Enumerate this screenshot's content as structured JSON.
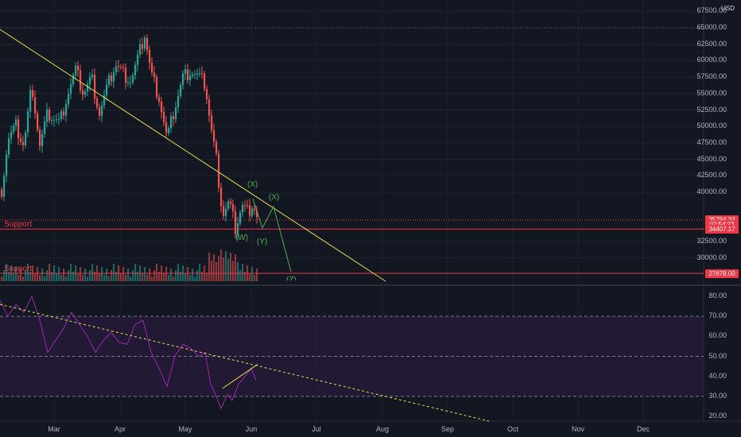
{
  "price_pane": {
    "currency": "USD",
    "axis_ticks": [
      {
        "label": "67500.00",
        "value": 67500
      },
      {
        "label": "65000.00",
        "value": 65000
      },
      {
        "label": "62500.00",
        "value": 62500
      },
      {
        "label": "60000.00",
        "value": 60000
      },
      {
        "label": "57500.00",
        "value": 57500
      },
      {
        "label": "55000.00",
        "value": 55000
      },
      {
        "label": "52500.00",
        "value": 52500
      },
      {
        "label": "50000.00",
        "value": 50000
      },
      {
        "label": "47500.00",
        "value": 47500
      },
      {
        "label": "45000.00",
        "value": 45000
      },
      {
        "label": "42500.00",
        "value": 42500
      },
      {
        "label": "40000.00",
        "value": 40000
      },
      {
        "label": "32500.00",
        "value": 32500
      },
      {
        "label": "30000.00",
        "value": 30000
      }
    ],
    "badges": [
      {
        "name": "last-price-badge",
        "label": "35794.34",
        "value": 35794.34,
        "color": "#f23645"
      },
      {
        "name": "countdown-badge",
        "label": "02:54:23",
        "value": 35150,
        "color": "#f23645"
      },
      {
        "name": "support-upper-badge",
        "label": "34407.17",
        "value": 34407.17,
        "color": "#f23645"
      },
      {
        "name": "support-lower-badge",
        "label": "27678.00",
        "value": 27678,
        "color": "#f23645"
      }
    ],
    "support_label_upper": "Support",
    "support_label_lower": "Support",
    "wave_labels": {
      "w": "(W)",
      "x1": "(X)",
      "y": "(Y)",
      "x2": "(X)",
      "z": "(Z)"
    }
  },
  "rsi_pane": {
    "axis_ticks": [
      {
        "label": "80.00",
        "value": 80
      },
      {
        "label": "70.00",
        "value": 70
      },
      {
        "label": "60.00",
        "value": 60
      },
      {
        "label": "50.00",
        "value": 50
      },
      {
        "label": "40.00",
        "value": 40
      },
      {
        "label": "30.00",
        "value": 30
      },
      {
        "label": "20.00",
        "value": 20
      }
    ],
    "upper_band": 70,
    "middle_band": 50,
    "lower_band": 30
  },
  "time_axis": [
    "Mar",
    "Apr",
    "May",
    "Jun",
    "Jul",
    "Aug",
    "Sep",
    "Oct",
    "Nov",
    "Dec"
  ],
  "colors": {
    "background": "#131722",
    "grid": "#1e222d",
    "up_candle": "#26a69a",
    "down_candle": "#ef5350",
    "trendline": "#e8e04a",
    "support": "#f23645",
    "wave": "#4caf50",
    "rsi_line": "#9c27b0",
    "rsi_band": "#2a1b3d"
  }
}
